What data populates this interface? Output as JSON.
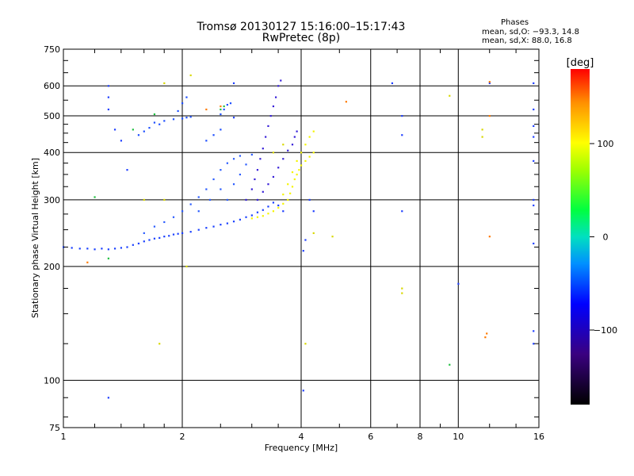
{
  "chart_data": {
    "type": "scatter",
    "title": "Tromsø 20130127 15:16:00–15:17:43",
    "subtitle": "RwPretec (8p)",
    "xlabel": "Frequency [MHz]",
    "ylabel": "Stationary phase Virtual Height [km]",
    "x_scale": "log",
    "y_scale": "log",
    "xlim": [
      1,
      16
    ],
    "ylim": [
      75,
      750
    ],
    "x_ticks": [
      "1",
      "2",
      "4",
      "6",
      "8",
      "10",
      "16"
    ],
    "y_ticks": [
      "75",
      "100",
      "200",
      "300",
      "400",
      "500",
      "600",
      "750"
    ],
    "grid": true,
    "phase_info": {
      "title": "Phases",
      "line_O": "mean, sd,O: −93.3, 14.8",
      "line_X": "mean, sd,X:  88.0, 16.8"
    },
    "colorbar": {
      "label": "[deg]",
      "range": [
        -180,
        180
      ],
      "ticks": [
        "100",
        "0",
        "−100"
      ],
      "tick_values": [
        100,
        0,
        -100
      ]
    },
    "traces": [
      {
        "name": "",
        "phase": -100,
        "color": "#1a40ff",
        "points": [
          [
            1.0,
            225
          ],
          [
            1.05,
            224
          ],
          [
            1.1,
            223
          ],
          [
            1.15,
            223
          ],
          [
            1.2,
            222
          ],
          [
            1.25,
            223
          ],
          [
            1.3,
            222
          ],
          [
            1.35,
            223
          ],
          [
            1.4,
            224
          ],
          [
            1.45,
            225
          ],
          [
            1.5,
            228
          ],
          [
            1.55,
            230
          ],
          [
            1.6,
            233
          ],
          [
            1.65,
            235
          ],
          [
            1.7,
            237
          ],
          [
            1.75,
            238
          ],
          [
            1.8,
            240
          ],
          [
            1.85,
            241
          ],
          [
            1.9,
            243
          ],
          [
            1.95,
            244
          ],
          [
            2.0,
            245
          ],
          [
            2.1,
            247
          ],
          [
            2.2,
            250
          ],
          [
            2.3,
            253
          ],
          [
            2.4,
            255
          ],
          [
            2.5,
            258
          ],
          [
            2.6,
            260
          ],
          [
            2.7,
            263
          ],
          [
            2.8,
            266
          ],
          [
            2.9,
            270
          ],
          [
            3.0,
            273
          ],
          [
            3.1,
            278
          ],
          [
            3.2,
            282
          ],
          [
            3.3,
            288
          ],
          [
            3.4,
            295
          ]
        ]
      },
      {
        "name": "",
        "phase": -100,
        "color": "#2a5cff",
        "points": [
          [
            1.6,
            245
          ],
          [
            1.7,
            255
          ],
          [
            1.8,
            262
          ],
          [
            1.9,
            270
          ],
          [
            2.0,
            280
          ],
          [
            2.1,
            292
          ],
          [
            2.2,
            305
          ],
          [
            2.3,
            320
          ],
          [
            2.4,
            340
          ],
          [
            2.5,
            360
          ],
          [
            2.6,
            375
          ],
          [
            2.7,
            385
          ],
          [
            2.8,
            392
          ],
          [
            2.2,
            280
          ],
          [
            2.35,
            300
          ],
          [
            2.5,
            320
          ],
          [
            2.6,
            300
          ],
          [
            2.7,
            330
          ],
          [
            2.8,
            350
          ],
          [
            2.9,
            372
          ],
          [
            3.0,
            395
          ]
        ]
      },
      {
        "name": "",
        "phase": -100,
        "color": "#1e50ff",
        "points": [
          [
            1.55,
            445
          ],
          [
            1.6,
            455
          ],
          [
            1.65,
            465
          ],
          [
            1.7,
            480
          ],
          [
            1.75,
            475
          ],
          [
            1.8,
            485
          ],
          [
            1.9,
            490
          ],
          [
            2.0,
            492
          ],
          [
            2.05,
            495
          ],
          [
            2.1,
            497
          ],
          [
            1.95,
            515
          ],
          [
            2.0,
            540
          ],
          [
            2.05,
            560
          ],
          [
            2.5,
            505
          ],
          [
            2.55,
            520
          ],
          [
            2.6,
            535
          ],
          [
            2.65,
            540
          ],
          [
            2.3,
            430
          ],
          [
            2.4,
            445
          ],
          [
            2.5,
            460
          ]
        ]
      },
      {
        "name": "",
        "phase": -120,
        "color": "#3820d8",
        "points": [
          [
            2.9,
            300
          ],
          [
            3.0,
            320
          ],
          [
            3.05,
            340
          ],
          [
            3.1,
            360
          ],
          [
            3.15,
            385
          ],
          [
            3.2,
            410
          ],
          [
            3.25,
            440
          ],
          [
            3.3,
            470
          ],
          [
            3.35,
            500
          ],
          [
            3.4,
            530
          ],
          [
            3.45,
            560
          ],
          [
            3.5,
            600
          ],
          [
            3.55,
            620
          ],
          [
            3.1,
            300
          ],
          [
            3.2,
            315
          ],
          [
            3.3,
            330
          ],
          [
            3.4,
            345
          ],
          [
            3.5,
            365
          ],
          [
            3.6,
            385
          ],
          [
            3.7,
            405
          ],
          [
            3.8,
            420
          ],
          [
            3.85,
            440
          ],
          [
            3.9,
            455
          ]
        ]
      },
      {
        "name": "",
        "phase": 100,
        "color": "#f5f500",
        "points": [
          [
            3.0,
            268
          ],
          [
            3.1,
            270
          ],
          [
            3.2,
            272
          ],
          [
            3.3,
            276
          ],
          [
            3.4,
            280
          ],
          [
            3.5,
            286
          ],
          [
            3.6,
            293
          ],
          [
            3.7,
            300
          ],
          [
            3.75,
            312
          ],
          [
            3.8,
            325
          ],
          [
            3.85,
            340
          ],
          [
            3.9,
            350
          ],
          [
            3.95,
            360
          ],
          [
            4.0,
            370
          ],
          [
            4.1,
            380
          ],
          [
            4.2,
            390
          ],
          [
            4.3,
            400
          ],
          [
            3.6,
            310
          ],
          [
            3.7,
            330
          ],
          [
            3.8,
            355
          ],
          [
            3.9,
            380
          ],
          [
            4.0,
            400
          ],
          [
            4.1,
            420
          ],
          [
            4.2,
            440
          ],
          [
            4.3,
            455
          ]
        ]
      },
      {
        "name": "",
        "phase": -100,
        "color": "#2040ff",
        "points": [
          [
            1.3,
            560
          ],
          [
            1.3,
            600
          ],
          [
            1.3,
            520
          ],
          [
            1.35,
            460
          ],
          [
            1.4,
            430
          ],
          [
            1.45,
            360
          ],
          [
            2.7,
            610
          ],
          [
            2.7,
            495
          ],
          [
            3.5,
            290
          ],
          [
            3.6,
            280
          ],
          [
            4.2,
            300
          ],
          [
            4.3,
            280
          ],
          [
            4.1,
            235
          ],
          [
            4.05,
            220
          ],
          [
            4.05,
            94
          ],
          [
            6.8,
            610
          ],
          [
            7.2,
            500
          ],
          [
            7.2,
            445
          ],
          [
            7.2,
            280
          ],
          [
            10.0,
            180
          ],
          [
            12.0,
            610
          ],
          [
            15.5,
            610
          ],
          [
            15.5,
            520
          ],
          [
            15.5,
            470
          ],
          [
            15.5,
            440
          ],
          [
            15.5,
            380
          ],
          [
            15.5,
            300
          ],
          [
            15.5,
            290
          ],
          [
            15.5,
            230
          ],
          [
            15.5,
            135
          ],
          [
            15.5,
            125
          ],
          [
            1.3,
            90
          ]
        ]
      },
      {
        "name": "",
        "phase": 100,
        "color": "#d8d800",
        "points": [
          [
            1.6,
            300
          ],
          [
            1.8,
            300
          ],
          [
            2.05,
            200
          ],
          [
            1.75,
            125
          ],
          [
            4.1,
            125
          ],
          [
            4.3,
            245
          ],
          [
            4.8,
            240
          ],
          [
            7.2,
            175
          ],
          [
            7.2,
            170
          ],
          [
            9.5,
            565
          ],
          [
            11.5,
            460
          ],
          [
            11.5,
            440
          ],
          [
            1.8,
            610
          ],
          [
            2.1,
            640
          ],
          [
            3.4,
            400
          ],
          [
            3.6,
            420
          ]
        ]
      },
      {
        "name": "",
        "phase": 150,
        "color": "#ff7a00",
        "points": [
          [
            5.2,
            545
          ],
          [
            12.0,
            615
          ],
          [
            12.0,
            500
          ],
          [
            12.0,
            240
          ],
          [
            11.8,
            133
          ],
          [
            11.7,
            130
          ],
          [
            1.15,
            205
          ],
          [
            2.3,
            520
          ],
          [
            2.5,
            530
          ]
        ]
      },
      {
        "name": "",
        "phase": 0,
        "color": "#20c040",
        "points": [
          [
            1.2,
            305
          ],
          [
            1.3,
            210
          ],
          [
            1.7,
            505
          ],
          [
            2.5,
            520
          ],
          [
            2.55,
            530
          ],
          [
            9.5,
            110
          ],
          [
            1.5,
            460
          ]
        ]
      }
    ]
  }
}
